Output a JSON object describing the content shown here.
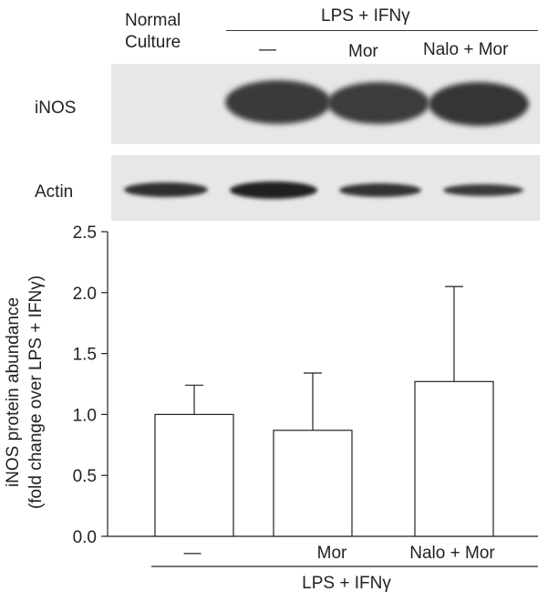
{
  "blot": {
    "header": {
      "normal_label_line1": "Normal",
      "normal_label_line2": "Culture",
      "treatment_group": "LPS + IFNγ",
      "lanes": [
        "—",
        "Mor",
        "Nalo + Mor"
      ]
    },
    "rows": [
      {
        "label": "iNOS"
      },
      {
        "label": "Actin"
      }
    ]
  },
  "chart_data": {
    "type": "bar",
    "categories": [
      "—",
      "Mor",
      "Nalo + Mor"
    ],
    "values": [
      1.0,
      0.87,
      1.27
    ],
    "errors": [
      0.24,
      0.47,
      0.78
    ],
    "ylabel_line1": "iNOS protein abundance",
    "ylabel_line2": "(fold change over LPS + IFNγ)",
    "xlabel": "LPS + IFNγ",
    "ylim": [
      0,
      2.5
    ],
    "yticks": [
      "0.0",
      "0.5",
      "1.0",
      "1.5",
      "2.0",
      "2.5"
    ],
    "error_bars": "upper",
    "bar_color": "#ffffff"
  }
}
